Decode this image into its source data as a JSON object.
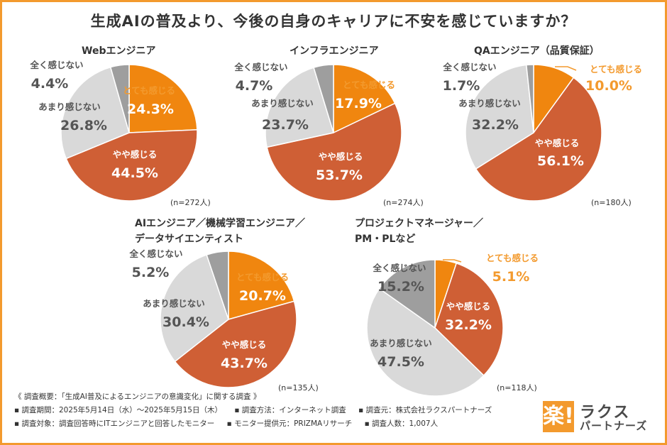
{
  "title": "生成AIの普及より、今後の自身のキャリアに不安を感じていますか？",
  "colors": {
    "frame": "#f39a2e",
    "strong": "#f0860f",
    "somewhat": "#cf5f35",
    "not_much": "#d9d9d9",
    "not_at_all": "#9e9e9e",
    "orange_text": "#f39a2e"
  },
  "chart_data": [
    {
      "type": "pie",
      "title": "Webエンジニア",
      "sample": "(n=272人)",
      "slices": [
        {
          "label": "とても感じる",
          "value": 24.3,
          "display": "24.3%"
        },
        {
          "label": "やや感じる",
          "value": 44.5,
          "display": "44.5%"
        },
        {
          "label": "あまり感じない",
          "value": 26.8,
          "display": "26.8%"
        },
        {
          "label": "全く感じない",
          "value": 4.4,
          "display": "4.4%"
        }
      ]
    },
    {
      "type": "pie",
      "title": "インフラエンジニア",
      "sample": "(n=274人)",
      "slices": [
        {
          "label": "とても感じる",
          "value": 17.9,
          "display": "17.9%"
        },
        {
          "label": "やや感じる",
          "value": 53.7,
          "display": "53.7%"
        },
        {
          "label": "あまり感じない",
          "value": 23.7,
          "display": "23.7%"
        },
        {
          "label": "全く感じない",
          "value": 4.7,
          "display": "4.7%"
        }
      ]
    },
    {
      "type": "pie",
      "title": "QAエンジニア（品質保証）",
      "sample": "(n=180人)",
      "slices": [
        {
          "label": "とても感じる",
          "value": 10.0,
          "display": "10.0%"
        },
        {
          "label": "やや感じる",
          "value": 56.1,
          "display": "56.1%"
        },
        {
          "label": "あまり感じない",
          "value": 32.2,
          "display": "32.2%"
        },
        {
          "label": "全く感じない",
          "value": 1.7,
          "display": "1.7%"
        }
      ]
    },
    {
      "type": "pie",
      "title": "AIエンジニア／機械学習エンジニア／",
      "title2": "データサイエンティスト",
      "sample": "(n=135人)",
      "slices": [
        {
          "label": "とても感じる",
          "value": 20.7,
          "display": "20.7%"
        },
        {
          "label": "やや感じる",
          "value": 43.7,
          "display": "43.7%"
        },
        {
          "label": "あまり感じない",
          "value": 30.4,
          "display": "30.4%"
        },
        {
          "label": "全く感じない",
          "value": 5.2,
          "display": "5.2%"
        }
      ]
    },
    {
      "type": "pie",
      "title": "プロジェクトマネージャー／",
      "title2": "PM・PLなど",
      "sample": "(n=118人)",
      "slices": [
        {
          "label": "とても感じる",
          "value": 5.1,
          "display": "5.1%"
        },
        {
          "label": "やや感じる",
          "value": 32.2,
          "display": "32.2%"
        },
        {
          "label": "あまり感じない",
          "value": 47.5,
          "display": "47.5%"
        },
        {
          "label": "全く感じない",
          "value": 15.2,
          "display": "15.2%"
        }
      ]
    }
  ],
  "footer": {
    "line1": "《 調査概要：「生成AI普及によるエンジニアの意識変化」に関する調査 》",
    "period": "▪ 調査期間：2025年5月14日（水）〜2025年5月15日（木）",
    "method": "▪ 調査方法：インターネット調査",
    "org": "▪ 調査元：株式会社ラクスパートナーズ",
    "target": "▪ 調査対象：調査回答時にITエンジニアと回答したモニター",
    "provider": "▪ モニター提供元：PRIZMAリサーチ",
    "count": "▪ 調査人数：1,007人"
  },
  "logo": {
    "mark": "楽!",
    "name": "ラクス",
    "sub": "パートナーズ"
  }
}
